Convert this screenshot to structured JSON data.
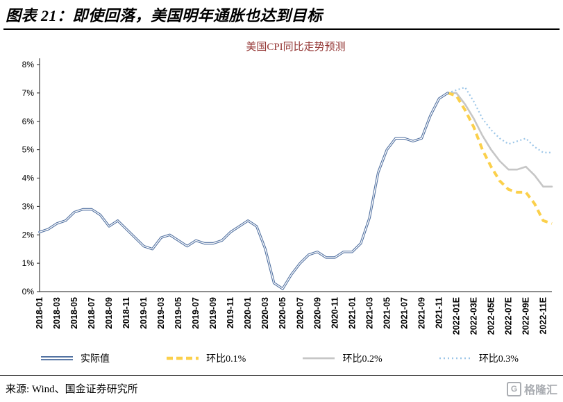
{
  "page": {
    "title": "图表 21：即使回落，美国明年通胀也达到目标",
    "source": "来源: Wind、国金证券研究所",
    "logo": {
      "letter": "G",
      "text": "格隆汇"
    }
  },
  "chart_data": {
    "type": "line",
    "title": "美国CPI同比走势预测",
    "xlabel": "",
    "ylabel": "",
    "ylim": [
      0,
      8
    ],
    "y_tick_format": "%",
    "grid": false,
    "legend_position": "bottom",
    "tick_step": 2,
    "categories": [
      "2018-01",
      "2018-02",
      "2018-03",
      "2018-04",
      "2018-05",
      "2018-06",
      "2018-07",
      "2018-08",
      "2018-09",
      "2018-10",
      "2018-11",
      "2018-12",
      "2019-01",
      "2019-02",
      "2019-03",
      "2019-04",
      "2019-05",
      "2019-06",
      "2019-07",
      "2019-08",
      "2019-09",
      "2019-10",
      "2019-11",
      "2019-12",
      "2020-01",
      "2020-02",
      "2020-03",
      "2020-04",
      "2020-05",
      "2020-06",
      "2020-07",
      "2020-08",
      "2020-09",
      "2020-10",
      "2020-11",
      "2020-12",
      "2021-01",
      "2021-02",
      "2021-03",
      "2021-04",
      "2021-05",
      "2021-06",
      "2021-07",
      "2021-08",
      "2021-09",
      "2021-10",
      "2021-11",
      "2021-12",
      "2022-01E",
      "2022-02E",
      "2022-03E",
      "2022-04E",
      "2022-05E",
      "2022-06E",
      "2022-07E",
      "2022-08E",
      "2022-09E",
      "2022-10E",
      "2022-11E",
      "2022-12E"
    ],
    "series": [
      {
        "name": "实际值",
        "color": "#4E6E9F",
        "style": "double-solid",
        "start_index": 0,
        "values": [
          2.1,
          2.2,
          2.4,
          2.5,
          2.8,
          2.9,
          2.9,
          2.7,
          2.3,
          2.5,
          2.2,
          1.9,
          1.6,
          1.5,
          1.9,
          2.0,
          1.8,
          1.6,
          1.8,
          1.7,
          1.7,
          1.8,
          2.1,
          2.3,
          2.5,
          2.3,
          1.5,
          0.3,
          0.1,
          0.6,
          1.0,
          1.3,
          1.4,
          1.2,
          1.2,
          1.4,
          1.4,
          1.7,
          2.6,
          4.2,
          5.0,
          5.4,
          5.4,
          5.3,
          5.4,
          6.2,
          6.8,
          7.0
        ]
      },
      {
        "name": "环比0.1%",
        "color": "#FBD04B",
        "style": "dashed",
        "start_index": 47,
        "values": [
          7.0,
          6.9,
          6.4,
          5.8,
          5.0,
          4.4,
          3.9,
          3.6,
          3.5,
          3.5,
          3.1,
          2.5,
          2.4
        ]
      },
      {
        "name": "环比0.2%",
        "color": "#C6C6C6",
        "style": "solid",
        "start_index": 47,
        "values": [
          7.0,
          7.0,
          6.6,
          6.1,
          5.5,
          5.0,
          4.6,
          4.3,
          4.3,
          4.4,
          4.1,
          3.7,
          3.7
        ]
      },
      {
        "name": "环比0.3%",
        "color": "#9CC6E8",
        "style": "dotted",
        "start_index": 47,
        "values": [
          7.0,
          7.1,
          7.2,
          6.7,
          6.1,
          5.7,
          5.4,
          5.2,
          5.3,
          5.4,
          5.1,
          4.9,
          4.9
        ]
      }
    ]
  }
}
